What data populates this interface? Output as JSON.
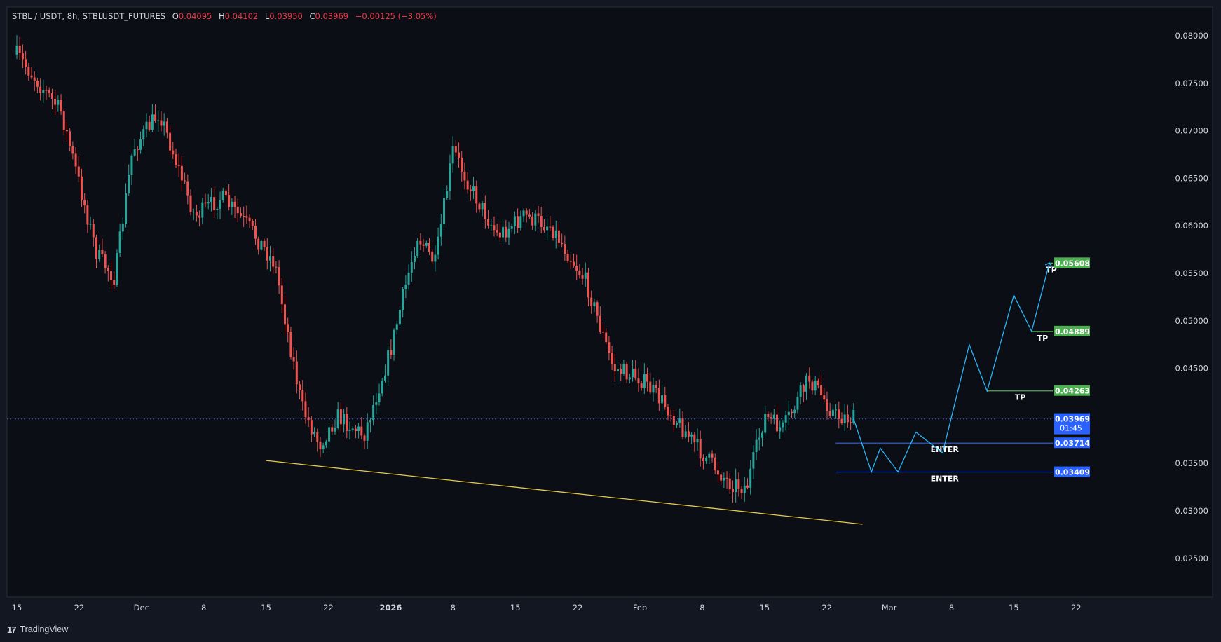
{
  "header": {
    "symbol": "STBL / USDT, 8h, STBLUSDT_FUTURES",
    "o_label": "O",
    "o_value": "0.04095",
    "h_label": "H",
    "h_value": "0.04102",
    "l_label": "L",
    "l_value": "0.03950",
    "c_label": "C",
    "c_value": "0.03969",
    "change": "−0.00125 (−3.05%)"
  },
  "branding": {
    "logo": "17",
    "name": "TradingView"
  },
  "colors": {
    "background": "#131722",
    "up": "#26a69a",
    "down": "#ef5350",
    "trendline": "#e6c84a",
    "projection": "#29b6f6",
    "tp": "#4caf50",
    "enter": "#2962ff",
    "last_price": "#2962ff",
    "text": "#d1d4dc"
  },
  "chart_data": {
    "type": "candlestick",
    "interval": "8h",
    "y_axis": {
      "range": [
        0.0215,
        0.0822
      ],
      "ticks": [
        "0.08000",
        "0.07500",
        "0.07000",
        "0.06500",
        "0.06000",
        "0.05500",
        "0.05000",
        "0.04500",
        "0.03500",
        "0.03000",
        "0.02500"
      ]
    },
    "x_axis": {
      "ticks": [
        "15",
        "22",
        "Dec",
        "8",
        "15",
        "22",
        "2026",
        "8",
        "15",
        "22",
        "Feb",
        "8",
        "15",
        "22",
        "Mar",
        "8",
        "15",
        "22"
      ],
      "bold": [
        "2026"
      ]
    },
    "ohlc_path": [
      {
        "date": "2025-11-15",
        "price": 0.078
      },
      {
        "date": "2025-11-20",
        "price": 0.072
      },
      {
        "date": "2025-11-24",
        "price": 0.057
      },
      {
        "date": "2025-11-26",
        "price": 0.0545
      },
      {
        "date": "2025-11-28",
        "price": 0.068
      },
      {
        "date": "2025-12-01",
        "price": 0.072
      },
      {
        "date": "2025-12-05",
        "price": 0.061
      },
      {
        "date": "2025-12-08",
        "price": 0.063
      },
      {
        "date": "2025-12-11",
        "price": 0.06
      },
      {
        "date": "2025-12-14",
        "price": 0.056
      },
      {
        "date": "2025-12-17",
        "price": 0.041
      },
      {
        "date": "2025-12-19",
        "price": 0.037
      },
      {
        "date": "2025-12-21",
        "price": 0.04
      },
      {
        "date": "2025-12-24",
        "price": 0.038
      },
      {
        "date": "2025-12-27",
        "price": 0.047
      },
      {
        "date": "2025-12-30",
        "price": 0.059
      },
      {
        "date": "2026-01-01",
        "price": 0.056
      },
      {
        "date": "2026-01-03",
        "price": 0.068
      },
      {
        "date": "2026-01-05",
        "price": 0.064
      },
      {
        "date": "2026-01-08",
        "price": 0.059
      },
      {
        "date": "2026-01-11",
        "price": 0.061
      },
      {
        "date": "2026-01-14",
        "price": 0.06
      },
      {
        "date": "2026-01-18",
        "price": 0.054
      },
      {
        "date": "2026-01-21",
        "price": 0.045
      },
      {
        "date": "2026-01-24",
        "price": 0.044
      },
      {
        "date": "2026-01-27",
        "price": 0.041
      },
      {
        "date": "2026-01-31",
        "price": 0.036
      },
      {
        "date": "2026-02-03",
        "price": 0.033
      },
      {
        "date": "2026-02-05",
        "price": 0.0325
      },
      {
        "date": "2026-02-07",
        "price": 0.04
      },
      {
        "date": "2026-02-09",
        "price": 0.0385
      },
      {
        "date": "2026-02-12",
        "price": 0.044
      },
      {
        "date": "2026-02-15",
        "price": 0.04
      },
      {
        "date": "2026-02-17",
        "price": 0.0397
      }
    ],
    "last_price": "0.03969",
    "countdown": "01:45",
    "trendline": [
      {
        "date": "2025-12-13",
        "price": 0.0353
      },
      {
        "date": "2026-02-18",
        "price": 0.0286
      }
    ],
    "projection_path": [
      {
        "date": "2026-02-17",
        "price": 0.0397
      },
      {
        "date": "2026-02-19",
        "price": 0.0341
      },
      {
        "date": "2026-02-20",
        "price": 0.0366
      },
      {
        "date": "2026-02-22",
        "price": 0.0341
      },
      {
        "date": "2026-02-24",
        "price": 0.0383
      },
      {
        "date": "2026-02-27",
        "price": 0.0361
      },
      {
        "date": "2026-03-02",
        "price": 0.0475
      },
      {
        "date": "2026-03-04",
        "price": 0.0426
      },
      {
        "date": "2026-03-07",
        "price": 0.0527
      },
      {
        "date": "2026-03-09",
        "price": 0.0489
      },
      {
        "date": "2026-03-11",
        "price": 0.0561
      }
    ],
    "levels": [
      {
        "label": "TP",
        "price": "0.05608",
        "value": 0.05608,
        "from": "2026-03-11",
        "kind": "tp"
      },
      {
        "label": "TP",
        "price": "0.04889",
        "value": 0.04889,
        "from": "2026-03-09",
        "kind": "tp"
      },
      {
        "label": "TP",
        "price": "0.04263",
        "value": 0.04263,
        "from": "2026-03-04",
        "kind": "tp"
      },
      {
        "label": "ENTER",
        "price": "0.03714",
        "value": 0.03714,
        "from": "2026-02-15",
        "kind": "enter"
      },
      {
        "label": "ENTER",
        "price": "0.03409",
        "value": 0.03409,
        "from": "2026-02-15",
        "kind": "enter"
      }
    ]
  }
}
